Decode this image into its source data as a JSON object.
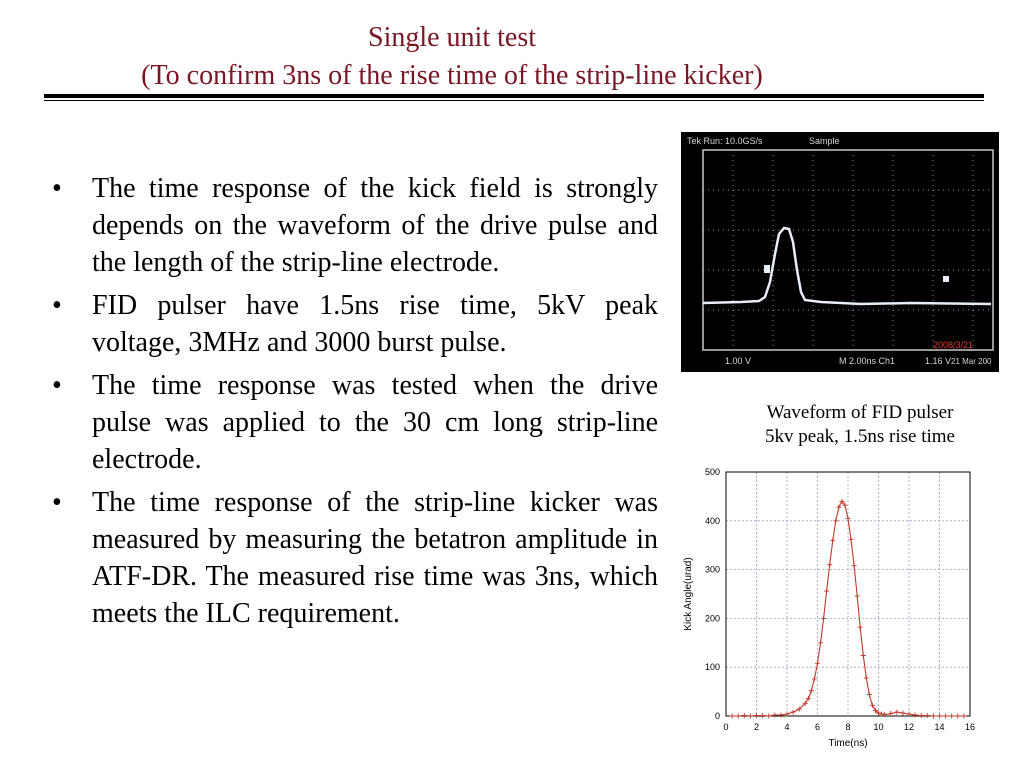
{
  "header": {
    "title_line1": "Single unit test",
    "title_line2": "(To confirm 3ns of the rise time of the strip-line kicker)"
  },
  "bullets": [
    "The time response of the kick field is strongly depends on the waveform of the drive pulse and the length of the strip-line electrode.",
    "FID pulser have 1.5ns rise time, 5kV peak voltage, 3MHz and 3000 burst pulse.",
    "The time response was tested when the drive pulse was applied to the 30 cm long strip-line electrode.",
    "The time response of the strip-line kicker was measured by measuring the betatron amplitude  in ATF-DR. The measured rise time was 3ns, which meets the ILC requirement."
  ],
  "bullet_symbol": "•",
  "oscilloscope": {
    "top_status": "Tek Run: 10.0GS/s",
    "mode": "Sample",
    "bottom_channel": "1.00 V",
    "bottom_timebase": "M 2.00ns  Ch1",
    "bottom_trigger": "1.16 V",
    "date_stamp": "2008/3/21",
    "date_short": "21 Mar 200"
  },
  "captions": {
    "line1": "Waveform of FID pulser",
    "line2": "5kv peak, 1.5ns rise time"
  },
  "colors": {
    "title": "#7a1526",
    "trace": "#c0392b",
    "grid": "#9aa3c7",
    "scope_trace": "#e8eef8",
    "scope_grid": "#8c8c8c",
    "scope_date": "#e23b2b"
  },
  "chart_data": {
    "type": "line",
    "xlabel": "Time(ns)",
    "ylabel": "Kick Angle(urad)",
    "xlim": [
      0,
      16
    ],
    "ylim": [
      0,
      500
    ],
    "xticks": [
      0,
      2,
      4,
      6,
      8,
      10,
      12,
      14,
      16
    ],
    "yticks": [
      0,
      100,
      200,
      300,
      400,
      500
    ],
    "grid": true,
    "markers": "plus",
    "series": [
      {
        "x": [
          0.4,
          0.8,
          1.2,
          1.6,
          2.0,
          2.4,
          2.8,
          3.2,
          3.6,
          4.0,
          4.4,
          4.8,
          5.2,
          5.4,
          5.6,
          5.8,
          6.0,
          6.2,
          6.4,
          6.6,
          6.8,
          7.0,
          7.2,
          7.4,
          7.6,
          7.8,
          8.0,
          8.2,
          8.4,
          8.6,
          8.8,
          9.0,
          9.2,
          9.4,
          9.6,
          9.8,
          10.0,
          10.2,
          10.4,
          10.8,
          11.2,
          11.6,
          12.0,
          12.4,
          12.8,
          13.2,
          13.6,
          14.0,
          14.4,
          14.8,
          15.2,
          15.6
        ],
        "y": [
          0,
          0,
          1,
          0,
          1,
          1,
          0,
          2,
          2,
          4,
          8,
          14,
          26,
          36,
          52,
          76,
          108,
          150,
          200,
          256,
          310,
          360,
          400,
          428,
          440,
          432,
          405,
          362,
          308,
          246,
          182,
          124,
          78,
          44,
          22,
          11,
          6,
          4,
          3,
          5,
          8,
          6,
          4,
          2,
          1,
          1,
          0,
          0,
          0,
          0,
          0,
          0
        ]
      }
    ]
  }
}
